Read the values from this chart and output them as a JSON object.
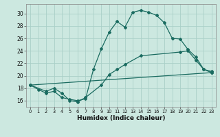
{
  "xlabel": "Humidex (Indice chaleur)",
  "xlim": [
    -0.5,
    23.5
  ],
  "ylim": [
    15.0,
    31.5
  ],
  "xticks": [
    0,
    1,
    2,
    3,
    4,
    5,
    6,
    7,
    8,
    9,
    10,
    11,
    12,
    13,
    14,
    15,
    16,
    17,
    18,
    19,
    20,
    21,
    22,
    23
  ],
  "yticks": [
    16,
    18,
    20,
    22,
    24,
    26,
    28,
    30
  ],
  "background_color": "#cce8e0",
  "grid_color": "#aad0c8",
  "line_color": "#1a6b60",
  "curve1_x": [
    0,
    1,
    2,
    3,
    4,
    5,
    6,
    7,
    8,
    9,
    10,
    11,
    12,
    13,
    14,
    15,
    16,
    17,
    18,
    19,
    20,
    21,
    22,
    23
  ],
  "curve1_y": [
    18.5,
    17.8,
    17.2,
    17.5,
    16.5,
    16.2,
    16.0,
    16.3,
    21.0,
    24.3,
    27.0,
    28.7,
    27.8,
    30.2,
    30.5,
    30.2,
    29.7,
    28.5,
    26.0,
    25.9,
    24.2,
    23.0,
    21.0,
    20.7
  ],
  "curve2_x": [
    0,
    2,
    3,
    4,
    5,
    6,
    7,
    9,
    10,
    11,
    12,
    14,
    19,
    20,
    21,
    22,
    23
  ],
  "curve2_y": [
    18.5,
    17.5,
    18.0,
    17.2,
    16.0,
    15.8,
    16.5,
    18.5,
    20.2,
    21.0,
    21.8,
    23.2,
    23.8,
    24.0,
    22.5,
    21.0,
    20.5
  ],
  "curve3_x": [
    0,
    23
  ],
  "curve3_y": [
    18.5,
    20.5
  ]
}
